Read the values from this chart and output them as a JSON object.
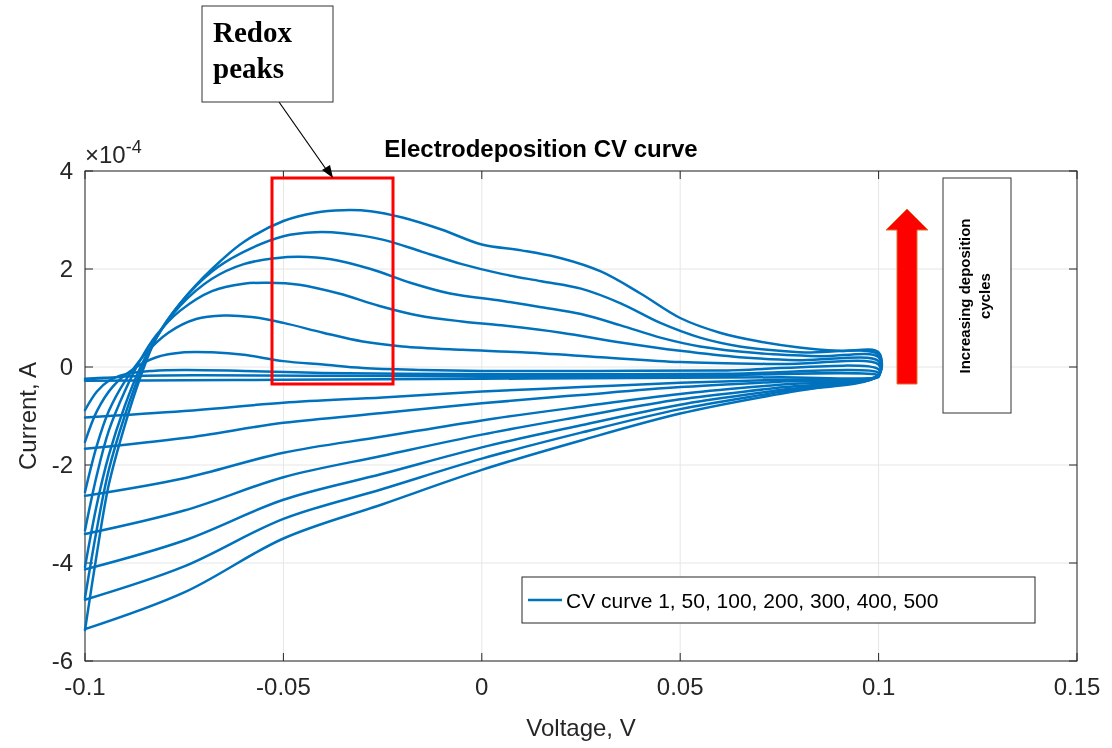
{
  "chart_data": {
    "type": "line",
    "title": "Electrodeposition CV curve",
    "xlabel": "Voltage, V",
    "ylabel": "Current, A",
    "annotations": [
      "×10$^{-4}$",
      "Redox peaks",
      "Increasing deposition cycles"
    ],
    "xlim": [
      -0.1,
      0.15
    ],
    "xticks": [
      -0.1,
      -0.05,
      0,
      0.05,
      0.1,
      0.15
    ],
    "ylim": [
      -6,
      4
    ],
    "yticks": [
      -6,
      -4,
      -2,
      0,
      2,
      4
    ],
    "grid": true,
    "legend": "bottom right",
    "marker": "none",
    "line_style": "solid",
    "series": [
      {
        "name": "CV curve 1, 50, 100, 200, 300, 400, 500",
        "color": "#0072bd",
        "x": [
          -0.1,
          -0.095,
          -0.085,
          -0.07,
          -0.04,
          0,
          0.05,
          0.1,
          0.1,
          0.075,
          0.05,
          0.025,
          0,
          -0.025,
          -0.05,
          -0.075,
          -0.1
        ],
        "values": [
          -0.24,
          -0.22,
          -0.18,
          -0.17,
          -0.18,
          -0.19,
          -0.18,
          -0.17,
          -0.2,
          -0.21,
          -0.22,
          -0.23,
          -0.24,
          -0.25,
          -0.26,
          -0.27,
          -0.28
        ]
      },
      {
        "color": "#0072bd",
        "x": [
          -0.1,
          -0.097,
          -0.094,
          -0.09,
          -0.083,
          -0.075,
          -0.06,
          -0.04,
          -0.02,
          0.02,
          0.06,
          0.1,
          0.1,
          0.075,
          0.05,
          0.025,
          0,
          -0.025,
          -0.05,
          -0.075,
          -0.1
        ],
        "values": [
          -0.88,
          -0.5,
          -0.28,
          -0.15,
          -0.08,
          -0.06,
          -0.08,
          -0.12,
          -0.14,
          -0.15,
          -0.14,
          -0.12,
          -0.19,
          -0.26,
          -0.32,
          -0.41,
          -0.5,
          -0.62,
          -0.73,
          -0.9,
          -1.03
        ]
      },
      {
        "color": "#0072bd",
        "x": [
          -0.1,
          -0.097,
          -0.093,
          -0.088,
          -0.082,
          -0.075,
          -0.068,
          -0.06,
          -0.05,
          -0.04,
          -0.03,
          -0.015,
          0,
          0.03,
          0.06,
          0.1,
          0.1,
          0.075,
          0.05,
          0.025,
          0,
          -0.025,
          -0.05,
          -0.075,
          -0.1
        ],
        "values": [
          -1.53,
          -0.9,
          -0.4,
          -0.05,
          0.2,
          0.3,
          0.3,
          0.25,
          0.12,
          0.05,
          -0.02,
          -0.06,
          -0.08,
          -0.08,
          -0.07,
          -0.05,
          -0.19,
          -0.3,
          -0.41,
          -0.57,
          -0.74,
          -0.94,
          -1.14,
          -1.45,
          -1.67
        ]
      },
      {
        "color": "#0072bd",
        "x": [
          -0.1,
          -0.097,
          -0.094,
          -0.09,
          -0.085,
          -0.079,
          -0.072,
          -0.065,
          -0.058,
          -0.05,
          -0.04,
          -0.03,
          -0.02,
          -0.005,
          0.01,
          0.03,
          0.05,
          0.075,
          0.1,
          0.1,
          0.075,
          0.05,
          0.025,
          0,
          -0.025,
          -0.05,
          -0.075,
          -0.1
        ],
        "values": [
          -2.55,
          -1.6,
          -0.9,
          -0.3,
          0.25,
          0.7,
          0.98,
          1.05,
          1.02,
          0.9,
          0.7,
          0.52,
          0.42,
          0.35,
          0.3,
          0.2,
          0.1,
          0.06,
          0.05,
          -0.18,
          -0.36,
          -0.55,
          -0.81,
          -1.09,
          -1.42,
          -1.75,
          -2.27,
          -2.63
        ]
      },
      {
        "color": "#0072bd",
        "x": [
          -0.1,
          -0.097,
          -0.094,
          -0.09,
          -0.086,
          -0.082,
          -0.076,
          -0.068,
          -0.06,
          -0.054,
          -0.046,
          -0.036,
          -0.026,
          -0.016,
          -0.005,
          0.005,
          0.02,
          0.035,
          0.05,
          0.065,
          0.08,
          0.1,
          0.1,
          0.075,
          0.05,
          0.025,
          0,
          -0.025,
          -0.05,
          -0.075,
          -0.1
        ],
        "values": [
          -3.33,
          -2.2,
          -1.3,
          -0.5,
          0.15,
          0.65,
          1.15,
          1.55,
          1.7,
          1.72,
          1.68,
          1.5,
          1.25,
          1.05,
          0.93,
          0.85,
          0.7,
          0.5,
          0.33,
          0.2,
          0.14,
          0.12,
          -0.17,
          -0.42,
          -0.66,
          -1.01,
          -1.38,
          -1.81,
          -2.25,
          -2.93,
          -3.41
        ]
      },
      {
        "color": "#0072bd",
        "x": [
          -0.1,
          -0.097,
          -0.094,
          -0.09,
          -0.086,
          -0.082,
          -0.076,
          -0.068,
          -0.06,
          -0.052,
          -0.046,
          -0.038,
          -0.028,
          -0.018,
          -0.008,
          0.005,
          0.015,
          0.025,
          0.035,
          0.045,
          0.055,
          0.07,
          0.085,
          0.1,
          0.1,
          0.075,
          0.05,
          0.025,
          0,
          -0.025,
          -0.05,
          -0.075,
          -0.1
        ],
        "values": [
          -4.08,
          -2.8,
          -1.8,
          -0.8,
          0,
          0.6,
          1.25,
          1.8,
          2.1,
          2.22,
          2.25,
          2.2,
          2,
          1.72,
          1.5,
          1.35,
          1.22,
          1.08,
          0.85,
          0.6,
          0.42,
          0.28,
          0.22,
          0.2,
          -0.16,
          -0.47,
          -0.77,
          -1.19,
          -1.64,
          -2.18,
          -2.71,
          -3.54,
          -4.13
        ]
      },
      {
        "color": "#0072bd",
        "x": [
          -0.1,
          -0.097,
          -0.094,
          -0.09,
          -0.086,
          -0.082,
          -0.076,
          -0.068,
          -0.06,
          -0.05,
          -0.042,
          -0.035,
          -0.025,
          -0.015,
          -0.005,
          0.005,
          0.015,
          0.025,
          0.035,
          0.045,
          0.055,
          0.065,
          0.08,
          0.1,
          0.1,
          0.075,
          0.05,
          0.025,
          0,
          -0.025,
          -0.05,
          -0.075,
          -0.1
        ],
        "values": [
          -4.71,
          -3.3,
          -2.1,
          -1,
          -0.1,
          0.6,
          1.3,
          1.95,
          2.35,
          2.67,
          2.75,
          2.73,
          2.6,
          2.35,
          2.1,
          1.9,
          1.75,
          1.6,
          1.3,
          0.9,
          0.6,
          0.42,
          0.3,
          0.25,
          -0.16,
          -0.51,
          -0.86,
          -1.34,
          -1.87,
          -2.49,
          -3.1,
          -4.07,
          -4.75
        ]
      },
      {
        "color": "#0072bd",
        "x": [
          -0.1,
          -0.097,
          -0.094,
          -0.09,
          -0.086,
          -0.082,
          -0.076,
          -0.068,
          -0.06,
          -0.05,
          -0.042,
          -0.035,
          -0.028,
          -0.02,
          -0.01,
          0,
          0.01,
          0.02,
          0.03,
          0.04,
          0.05,
          0.06,
          0.07,
          0.08,
          0.09,
          0.1,
          0.1,
          0.09,
          0.075,
          0.05,
          0.025,
          0,
          -0.025,
          -0.05,
          -0.075,
          -0.1
        ],
        "values": [
          -5.37,
          -3.8,
          -2.4,
          -1.2,
          -0.2,
          0.6,
          1.3,
          2,
          2.55,
          2.98,
          3.15,
          3.2,
          3.18,
          3.05,
          2.8,
          2.5,
          2.38,
          2.22,
          1.95,
          1.5,
          1,
          0.7,
          0.52,
          0.4,
          0.33,
          0.3,
          -0.15,
          -0.35,
          -0.55,
          -0.95,
          -1.5,
          -2.1,
          -2.8,
          -3.5,
          -4.6,
          -5.35
        ]
      }
    ]
  }
}
